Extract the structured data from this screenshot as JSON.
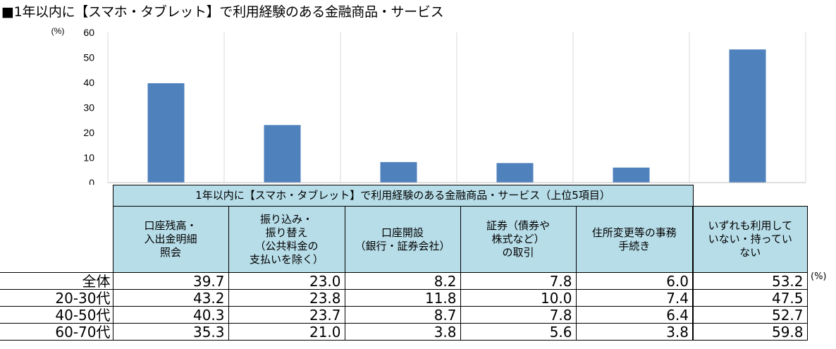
{
  "title": "■1年以内に【スマホ・タブレット】で利用経験のある金融商品・サービス",
  "table": {
    "group_header": "1年以内に【スマホ・タブレット】で利用経験のある金融商品・サービス（上位5項目）",
    "unit_right": "(%)",
    "rows": [
      {
        "label": "全体",
        "values": [
          39.7,
          23.0,
          8.2,
          7.8,
          6.0,
          53.2
        ]
      },
      {
        "label": "20-30代",
        "values": [
          43.2,
          23.8,
          11.8,
          10.0,
          7.4,
          47.5
        ]
      },
      {
        "label": "40-50代",
        "values": [
          40.3,
          23.7,
          8.7,
          7.8,
          6.4,
          52.7
        ]
      },
      {
        "label": "60-70代",
        "values": [
          35.3,
          21.0,
          3.8,
          5.6,
          3.8,
          59.8
        ]
      }
    ]
  },
  "chart_data": {
    "type": "bar",
    "categories": [
      "口座残高・\n入出金明細\n照会",
      "振り込み・\n振り替え\n（公共料金の\n支払いを除く）",
      "口座開設\n（銀行・証券会社）",
      "証券（債券や\n株式など）\nの取引",
      "住所変更等の事務\n手続き",
      "いずれも利用して\nいない・持ってい\nない"
    ],
    "series": [
      {
        "values": [
          39.7,
          23.0,
          8.2,
          7.8,
          6.0,
          53.2
        ]
      }
    ],
    "ylabel": "(%)",
    "ylim": [
      0,
      60
    ],
    "yticks": [
      0,
      10,
      20,
      30,
      40,
      50,
      60
    ],
    "grid": "vertical-category",
    "bar_color": "#4f81bd"
  }
}
